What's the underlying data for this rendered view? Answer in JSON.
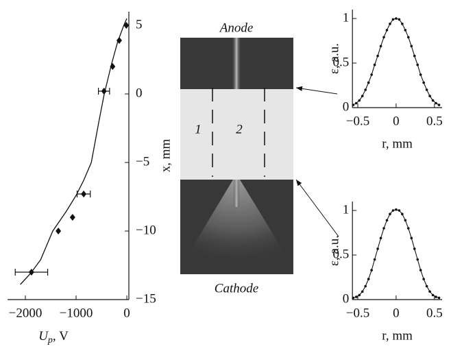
{
  "chart_data": [
    {
      "type": "scatter",
      "xlabel": {
        "symbol": "U",
        "subscript": "p",
        "unit": ", V"
      },
      "ylabel": "x, mm",
      "x": [
        -1880,
        -1350,
        -1070,
        -850,
        -450,
        -280,
        -150,
        -10
      ],
      "values": [
        -13,
        -10,
        -9,
        -7.3,
        0.2,
        2,
        3.9,
        5
      ],
      "xerr": [
        320,
        null,
        null,
        130,
        110,
        null,
        null,
        null
      ],
      "fit": {
        "x": [
          -2100,
          -1900,
          -1700,
          -1460,
          -1200,
          -1000,
          -850,
          -700,
          -550,
          -445,
          -300,
          -180,
          -60,
          0
        ],
        "values": [
          -13.9,
          -13.1,
          -12.1,
          -10,
          -8.6,
          -7.4,
          -6.3,
          -5,
          -2,
          0,
          2.2,
          3.8,
          5,
          5.5
        ]
      },
      "color": "#111",
      "xlim": [
        -2350,
        40
      ],
      "ylim": [
        -15,
        6
      ],
      "xticks": [
        {
          "value": -2000,
          "label": "−2000"
        },
        {
          "value": -1000,
          "label": "−1000"
        },
        0
      ],
      "yticks": [
        5,
        0,
        {
          "value": -5,
          "label": "−5"
        },
        {
          "value": -10,
          "label": "−10"
        },
        {
          "value": -15,
          "label": "−15"
        }
      ]
    },
    {
      "type": "line",
      "xlabel": "r, mm",
      "ylabel": "ε, a.u.",
      "color": "#111",
      "x": [
        -0.56,
        -0.52,
        -0.48,
        -0.44,
        -0.4,
        -0.36,
        -0.32,
        -0.28,
        -0.24,
        -0.2,
        -0.16,
        -0.12,
        -0.08,
        -0.04,
        0,
        0.04,
        0.08,
        0.12,
        0.16,
        0.2,
        0.24,
        0.28,
        0.32,
        0.36,
        0.4,
        0.44,
        0.48,
        0.52,
        0.56
      ],
      "values": [
        0.03,
        0.05,
        0.08,
        0.13,
        0.2,
        0.28,
        0.37,
        0.48,
        0.58,
        0.69,
        0.79,
        0.87,
        0.94,
        0.99,
        1,
        0.99,
        0.94,
        0.87,
        0.79,
        0.69,
        0.58,
        0.48,
        0.37,
        0.28,
        0.2,
        0.13,
        0.08,
        0.05,
        0.03
      ],
      "xlim": [
        -0.57,
        0.6
      ],
      "ylim": [
        0,
        1.1
      ],
      "xticks": [
        {
          "value": -0.5,
          "label": "−0.5"
        },
        0,
        0.5
      ],
      "yticks": [
        0,
        0.5,
        1
      ]
    },
    {
      "type": "line",
      "xlabel": "r, mm",
      "ylabel": "ε, a.u.",
      "color": "#111",
      "x": [
        -0.56,
        -0.52,
        -0.48,
        -0.44,
        -0.4,
        -0.36,
        -0.32,
        -0.28,
        -0.24,
        -0.2,
        -0.16,
        -0.12,
        -0.08,
        -0.04,
        0,
        0.04,
        0.08,
        0.12,
        0.16,
        0.2,
        0.24,
        0.28,
        0.32,
        0.36,
        0.4,
        0.44,
        0.48,
        0.52,
        0.56
      ],
      "values": [
        0.02,
        0.03,
        0.05,
        0.09,
        0.15,
        0.23,
        0.33,
        0.45,
        0.57,
        0.69,
        0.8,
        0.89,
        0.96,
        1,
        1.01,
        1,
        0.96,
        0.89,
        0.8,
        0.69,
        0.57,
        0.45,
        0.33,
        0.23,
        0.15,
        0.09,
        0.05,
        0.03,
        0.02
      ],
      "xlim": [
        -0.57,
        0.6
      ],
      "ylim": [
        0,
        1.1
      ],
      "xticks": [
        {
          "value": -0.5,
          "label": "−0.5"
        },
        0,
        0.5
      ],
      "yticks": [
        0,
        0.5,
        1
      ]
    }
  ],
  "image": {
    "top_label": "Anode",
    "bottom_label": "Cathode",
    "zone_labels": [
      "1",
      "2"
    ]
  }
}
